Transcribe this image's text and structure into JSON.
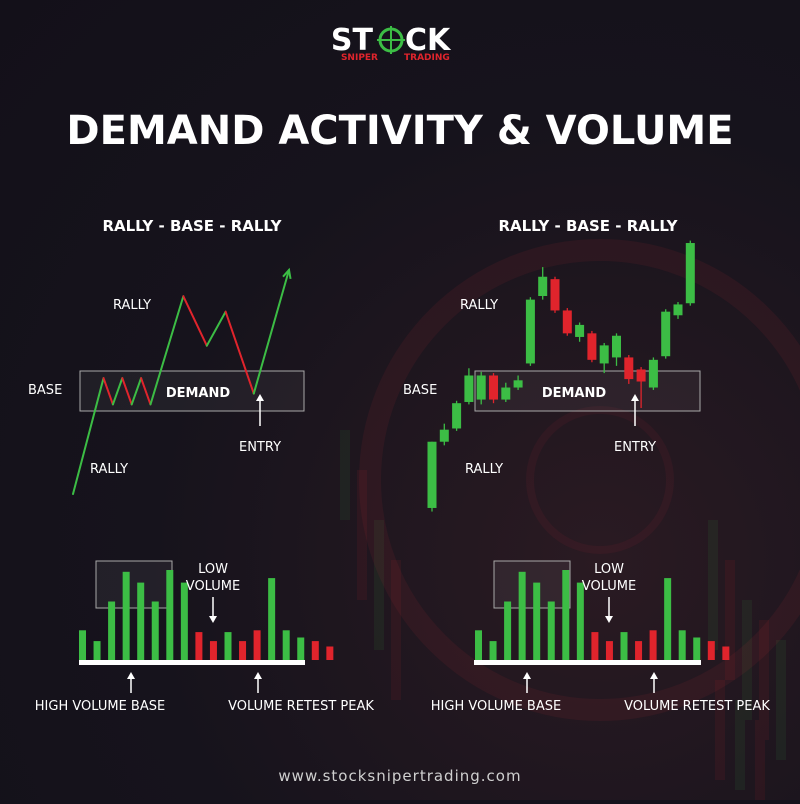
{
  "brand": {
    "name_left": "ST",
    "name_right": "CK",
    "tag_left": "SNIPER",
    "tag_right": "TRADING"
  },
  "title": "DEMAND ACTIVITY & VOLUME",
  "footer": "www.stocksnipertrading.com",
  "colors": {
    "green": "#3cbd45",
    "red": "#e0242c",
    "text": "#ffffff",
    "zone": "#a8a8a8"
  },
  "chart_data": [
    {
      "type": "line",
      "subtitle": "RALLY - BASE - RALLY",
      "labels": {
        "rally_top": "RALLY",
        "base": "BASE",
        "demand": "DEMAND",
        "entry": "ENTRY",
        "rally_bottom": "RALLY"
      },
      "path": [
        {
          "x": 0,
          "y": 0
        },
        {
          "x": 1.3,
          "y": 7.5
        },
        {
          "x": 1.7,
          "y": 5.8
        },
        {
          "x": 2.1,
          "y": 7.5
        },
        {
          "x": 2.5,
          "y": 5.8
        },
        {
          "x": 2.9,
          "y": 7.5
        },
        {
          "x": 3.3,
          "y": 5.8
        },
        {
          "x": 4.7,
          "y": 12.8
        },
        {
          "x": 5.7,
          "y": 9.6
        },
        {
          "x": 6.5,
          "y": 11.8
        },
        {
          "x": 7.7,
          "y": 6.5
        },
        {
          "x": 9.2,
          "y": 14.5
        }
      ]
    },
    {
      "type": "candlestick",
      "subtitle": "RALLY - BASE - RALLY",
      "labels": {
        "rally_top": "RALLY",
        "base": "BASE",
        "demand": "DEMAND",
        "entry": "ENTRY",
        "rally_bottom": "RALLY"
      },
      "candles": [
        {
          "o": 1.0,
          "c": 6.5,
          "h": 6.5,
          "l": 0.7
        },
        {
          "o": 6.5,
          "c": 7.5,
          "h": 8.0,
          "l": 6.2
        },
        {
          "o": 7.6,
          "c": 9.7,
          "h": 9.9,
          "l": 7.4
        },
        {
          "o": 9.8,
          "c": 12.0,
          "h": 12.6,
          "l": 9.6
        },
        {
          "o": 10.0,
          "c": 12.0,
          "h": 12.3,
          "l": 9.6
        },
        {
          "o": 12.0,
          "c": 10.0,
          "h": 12.2,
          "l": 9.7
        },
        {
          "o": 10.0,
          "c": 11.0,
          "h": 11.4,
          "l": 9.8
        },
        {
          "o": 11.0,
          "c": 11.6,
          "h": 12.0,
          "l": 10.8
        },
        {
          "o": 13.0,
          "c": 18.3,
          "h": 18.5,
          "l": 12.8
        },
        {
          "o": 18.6,
          "c": 20.2,
          "h": 21.0,
          "l": 18.3
        },
        {
          "o": 20.0,
          "c": 17.4,
          "h": 20.2,
          "l": 17.2
        },
        {
          "o": 17.4,
          "c": 15.5,
          "h": 17.6,
          "l": 15.3
        },
        {
          "o": 15.2,
          "c": 16.2,
          "h": 16.4,
          "l": 14.8
        },
        {
          "o": 15.5,
          "c": 13.3,
          "h": 15.7,
          "l": 13.1
        },
        {
          "o": 13.0,
          "c": 14.5,
          "h": 14.7,
          "l": 12.2
        },
        {
          "o": 13.5,
          "c": 15.3,
          "h": 15.5,
          "l": 12.8
        },
        {
          "o": 13.5,
          "c": 11.7,
          "h": 13.7,
          "l": 11.3
        },
        {
          "o": 12.5,
          "c": 11.5,
          "h": 12.7,
          "l": 9.3
        },
        {
          "o": 11.0,
          "c": 13.3,
          "h": 13.5,
          "l": 10.8
        },
        {
          "o": 13.6,
          "c": 17.3,
          "h": 17.5,
          "l": 13.4
        },
        {
          "o": 17.0,
          "c": 17.9,
          "h": 18.1,
          "l": 16.7
        },
        {
          "o": 18.0,
          "c": 23.0,
          "h": 23.2,
          "l": 17.8
        }
      ]
    }
  ],
  "volume": {
    "low_volume": "LOW VOLUME",
    "high_volume_base": "HIGH VOLUME BASE",
    "volume_retest_peak": "VOLUME RETEST PEAK",
    "bars": [
      {
        "v": 0.33,
        "c": "g"
      },
      {
        "v": 0.21,
        "c": "g"
      },
      {
        "v": 0.65,
        "c": "g"
      },
      {
        "v": 0.98,
        "c": "g"
      },
      {
        "v": 0.86,
        "c": "g"
      },
      {
        "v": 0.65,
        "c": "g"
      },
      {
        "v": 1.0,
        "c": "g"
      },
      {
        "v": 0.86,
        "c": "g"
      },
      {
        "v": 0.31,
        "c": "r"
      },
      {
        "v": 0.21,
        "c": "r"
      },
      {
        "v": 0.31,
        "c": "g"
      },
      {
        "v": 0.21,
        "c": "r"
      },
      {
        "v": 0.33,
        "c": "r"
      },
      {
        "v": 0.91,
        "c": "g"
      },
      {
        "v": 0.33,
        "c": "g"
      },
      {
        "v": 0.25,
        "c": "g"
      },
      {
        "v": 0.21,
        "c": "r"
      },
      {
        "v": 0.15,
        "c": "r"
      }
    ]
  }
}
